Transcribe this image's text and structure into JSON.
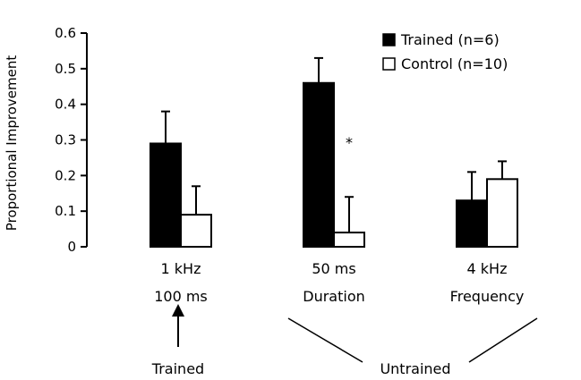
{
  "chart_data": {
    "type": "bar",
    "ylabel": "Proportional Improvement",
    "ylim": [
      0,
      0.6
    ],
    "yticks": [
      "0",
      "0.1",
      "0.2",
      "0.3",
      "0.4",
      "0.5",
      "0.6"
    ],
    "yticks_values": [
      0,
      0.1,
      0.2,
      0.3,
      0.4,
      0.5,
      0.6
    ],
    "grid": false,
    "legend_position": "top-right",
    "categories": [
      {
        "line1": "1 kHz",
        "line2": "100 ms"
      },
      {
        "line1": "50 ms",
        "line2": "Duration"
      },
      {
        "line1": "4 kHz",
        "line2": "Frequency"
      }
    ],
    "series": [
      {
        "name": "Trained (n=6)",
        "fill": "#000000",
        "values": [
          0.29,
          0.46,
          0.13
        ],
        "errors": [
          0.09,
          0.07,
          0.08
        ]
      },
      {
        "name": "Control (n=10)",
        "fill": "#ffffff",
        "values": [
          0.09,
          0.04,
          0.19
        ],
        "errors": [
          0.08,
          0.1,
          0.05
        ]
      }
    ],
    "annotations": {
      "significance": "*",
      "trained_label": "Trained",
      "untrained_label": "Untrained"
    }
  }
}
